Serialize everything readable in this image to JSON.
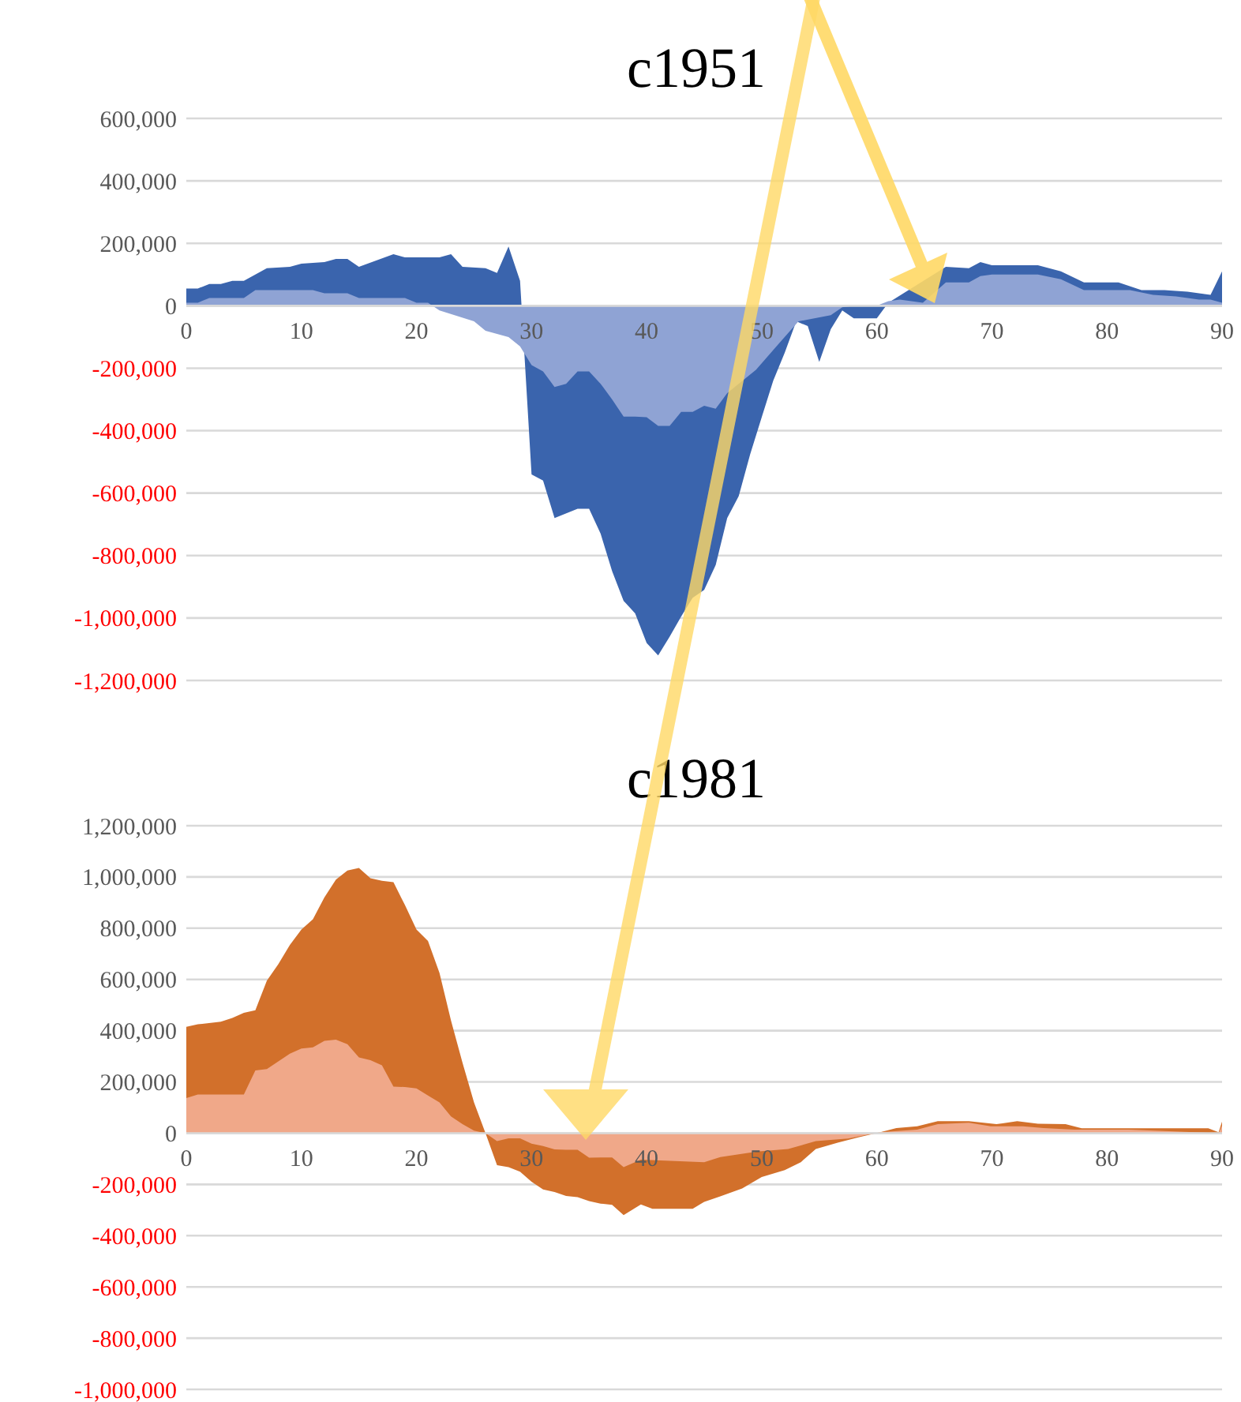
{
  "chart_data": [
    {
      "type": "area",
      "title": "c1951",
      "xlim": [
        0,
        90
      ],
      "xticks": [
        0,
        10,
        20,
        30,
        40,
        50,
        60,
        70,
        80,
        90
      ],
      "ylim": [
        -1200000,
        600000
      ],
      "yticks": [
        {
          "value": 600000,
          "label": "600,000"
        },
        {
          "value": 400000,
          "label": "400,000"
        },
        {
          "value": 200000,
          "label": "200,000"
        },
        {
          "value": 0,
          "label": "0"
        },
        {
          "value": -200000,
          "label": "-200,000"
        },
        {
          "value": -400000,
          "label": "-400,000"
        },
        {
          "value": -600000,
          "label": "-600,000"
        },
        {
          "value": -800000,
          "label": "-800,000"
        },
        {
          "value": -1000000,
          "label": "-1,000,000"
        },
        {
          "value": -1200000,
          "label": "-1,200,000"
        }
      ],
      "grid": "y",
      "series": [
        {
          "color": "#3a64ad",
          "x": [
            0,
            1,
            2,
            3,
            4,
            5,
            6,
            7,
            9,
            10,
            12,
            13,
            14,
            15,
            18,
            19,
            22,
            23,
            24,
            26,
            27,
            28,
            29,
            30,
            31,
            32,
            34,
            35,
            36,
            37,
            38,
            39,
            40,
            41,
            42,
            43,
            44,
            45,
            46,
            47,
            48,
            49,
            50,
            51,
            52,
            53,
            54,
            55,
            56,
            57,
            58,
            60,
            61,
            62,
            64,
            65,
            66,
            68,
            69,
            70,
            74,
            76,
            78,
            81,
            83,
            85,
            87,
            89,
            90
          ],
          "values": [
            55000,
            55000,
            70000,
            70000,
            80000,
            80000,
            100000,
            120000,
            125000,
            135000,
            140000,
            150000,
            150000,
            125000,
            165000,
            155000,
            155000,
            165000,
            125000,
            120000,
            105000,
            190000,
            80000,
            -540000,
            -560000,
            -680000,
            -650000,
            -650000,
            -730000,
            -850000,
            -945000,
            -985000,
            -1080000,
            -1120000,
            -1060000,
            -995000,
            -935000,
            -910000,
            -830000,
            -680000,
            -610000,
            -475000,
            -357000,
            -240000,
            -150000,
            -50000,
            -65000,
            -180000,
            -75000,
            -15000,
            -40000,
            -40000,
            10000,
            null,
            null,
            null,
            125000,
            120000,
            140000,
            130000,
            130000,
            110000,
            75000,
            75000,
            50000,
            50000,
            45000,
            35000,
            110000
          ]
        },
        {
          "color": "#8fa3d4",
          "x": [
            0,
            1,
            2,
            5,
            6,
            11,
            12,
            14,
            15,
            19,
            20,
            21,
            22,
            25,
            26,
            28,
            29,
            30,
            31,
            32,
            33,
            34,
            35,
            36,
            37,
            38,
            39,
            40,
            41,
            42,
            43,
            44,
            45,
            46,
            47,
            49.5,
            51.4,
            53.2,
            56,
            57,
            58,
            60,
            61,
            62,
            64,
            65,
            66,
            68,
            69,
            70,
            74,
            76,
            78,
            80,
            82,
            84,
            86,
            88,
            89,
            90
          ],
          "values": [
            10000,
            10000,
            25000,
            25000,
            50000,
            50000,
            40000,
            40000,
            25000,
            25000,
            10000,
            10000,
            -15000,
            -50000,
            -80000,
            -100000,
            -130000,
            -190000,
            -210000,
            -260000,
            -250000,
            -210000,
            -210000,
            -250000,
            -300000,
            -355000,
            -355000,
            -357000,
            -385000,
            -385000,
            -340000,
            -340000,
            -320000,
            -330000,
            -280000,
            -205000,
            -125000,
            -50000,
            -30000,
            -5000,
            0,
            0,
            15000,
            20000,
            10000,
            null,
            75000,
            75000,
            95000,
            100000,
            100000,
            85000,
            50000,
            50000,
            50000,
            35000,
            30000,
            20000,
            20000,
            10000
          ]
        }
      ]
    },
    {
      "type": "area",
      "title": "c1981",
      "xlim": [
        0,
        90
      ],
      "xticks": [
        0,
        10,
        20,
        30,
        40,
        50,
        60,
        70,
        80,
        90
      ],
      "ylim": [
        -1000000,
        1200000
      ],
      "yticks": [
        {
          "value": 1200000,
          "label": "1,200,000"
        },
        {
          "value": 1000000,
          "label": "1,000,000"
        },
        {
          "value": 800000,
          "label": "800,000"
        },
        {
          "value": 600000,
          "label": "600,000"
        },
        {
          "value": 400000,
          "label": "400,000"
        },
        {
          "value": 200000,
          "label": "200,000"
        },
        {
          "value": 0,
          "label": "0"
        },
        {
          "value": -200000,
          "label": "-200,000"
        },
        {
          "value": -400000,
          "label": "-400,000"
        },
        {
          "value": -600000,
          "label": "-600,000"
        },
        {
          "value": -800000,
          "label": "-800,000"
        },
        {
          "value": -1000000,
          "label": "-1,000,000"
        }
      ],
      "grid": "y",
      "series": [
        {
          "color": "#d2702b",
          "x": [
            0,
            1,
            3,
            4,
            5,
            6,
            7,
            8,
            9,
            10,
            11,
            12,
            13,
            14,
            15,
            16,
            17,
            18,
            19,
            20,
            21,
            22,
            23,
            24,
            25,
            26,
            27,
            28,
            29,
            30,
            31,
            32,
            33,
            34,
            35,
            36,
            37,
            38,
            39.5,
            40.5,
            44,
            45,
            46.4,
            48.3,
            50,
            52,
            53.4,
            54.7,
            56.6,
            58.4,
            60.3,
            61.7,
            63.5,
            65.3,
            68,
            70.4,
            72.2,
            74,
            76.4,
            77.8,
            81.9,
            88.8,
            89.7,
            90
          ],
          "values": [
            415000,
            425000,
            435000,
            450000,
            470000,
            480000,
            595000,
            660000,
            735000,
            795000,
            835000,
            920000,
            990000,
            1025000,
            1035000,
            995000,
            985000,
            980000,
            890000,
            795000,
            750000,
            625000,
            440000,
            275000,
            120000,
            0,
            -125000,
            -133000,
            -150000,
            -190000,
            -220000,
            -230000,
            -245000,
            -250000,
            -265000,
            -275000,
            -280000,
            -320000,
            -278000,
            -295000,
            -295000,
            -268000,
            -247000,
            -216000,
            -171000,
            -144000,
            -113000,
            -62000,
            -37000,
            -16000,
            4000,
            20000,
            27000,
            47000,
            47000,
            35000,
            47000,
            37000,
            35000,
            19000,
            19000,
            19000,
            4000,
            45000
          ]
        },
        {
          "color": "#f0a889",
          "x": [
            0,
            1,
            5,
            6,
            7,
            8,
            9,
            10,
            11,
            12,
            13,
            14,
            15,
            16,
            17,
            18,
            19,
            20,
            21,
            22,
            23,
            24,
            25,
            26,
            27,
            28,
            29,
            30,
            31,
            32,
            33,
            34,
            35,
            36,
            37,
            38,
            39.5,
            45,
            46.4,
            49.6,
            52.3,
            54.7,
            57.5,
            60.3,
            63.5,
            65.3,
            68,
            69.9,
            72.7,
            74.5,
            77.2,
            81.9,
            89.7,
            90
          ],
          "values": [
            137000,
            151000,
            151000,
            245000,
            250000,
            280000,
            310000,
            330000,
            335000,
            360000,
            365000,
            347000,
            296000,
            285000,
            265000,
            182000,
            180000,
            175000,
            147000,
            120000,
            65000,
            35000,
            10000,
            0,
            -31000,
            -20000,
            -20000,
            -41000,
            -50000,
            -63000,
            -65000,
            -65000,
            -96000,
            -95000,
            -95000,
            -133000,
            -103000,
            -113000,
            -93000,
            -72000,
            -62000,
            -31000,
            -21000,
            4000,
            14000,
            35000,
            41000,
            27000,
            27000,
            20000,
            14000,
            14000,
            0,
            30000
          ]
        }
      ]
    }
  ]
}
